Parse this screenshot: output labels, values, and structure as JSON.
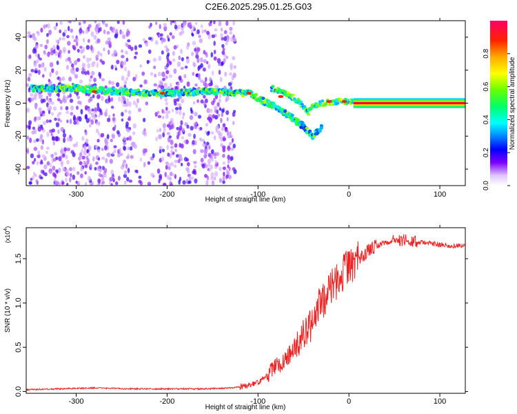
{
  "title": "C2E6.2025.295.01.25.G03",
  "chart_data": [
    {
      "type": "heatmap",
      "xlabel": "Height of straight line (km)",
      "ylabel": "Frequency (Hz)",
      "xlim": [
        -355,
        128
      ],
      "ylim": [
        -50,
        50
      ],
      "xticks": [
        -300,
        -200,
        -100,
        0,
        100
      ],
      "yticks": [
        -40,
        -20,
        0,
        20,
        40
      ],
      "colorbar": {
        "label": "Normalized spectral amplitude",
        "range": [
          0,
          1
        ],
        "ticks": [
          "0.0",
          "0.2",
          "0.4",
          "0.6",
          "0.8"
        ],
        "colors": [
          "#ffffff",
          "#7c00ff",
          "#0000ff",
          "#00aaff",
          "#00ffff",
          "#00ff66",
          "#66ff00",
          "#ffff00",
          "#ffaa00",
          "#ff0000",
          "#ff0066"
        ]
      },
      "ridge": [
        {
          "x": -350,
          "y": 9
        },
        {
          "x": -300,
          "y": 9
        },
        {
          "x": -260,
          "y": 7
        },
        {
          "x": -210,
          "y": 6
        },
        {
          "x": -150,
          "y": 7
        },
        {
          "x": -110,
          "y": 6
        },
        {
          "x": -100,
          "y": 3
        },
        {
          "x": -90,
          "y": 0
        },
        {
          "x": -80,
          "y": -2
        },
        {
          "x": -70,
          "y": -6
        },
        {
          "x": -60,
          "y": -10
        },
        {
          "x": -50,
          "y": -14
        },
        {
          "x": -40,
          "y": -20
        },
        {
          "x": 0,
          "y": 1
        },
        {
          "x": 128,
          "y": 0
        }
      ],
      "branch": [
        {
          "x": -85,
          "y": 9
        },
        {
          "x": -70,
          "y": 6
        },
        {
          "x": -60,
          "y": 3
        },
        {
          "x": -50,
          "y": -2
        },
        {
          "x": -45,
          "y": -6
        },
        {
          "x": -40,
          "y": -2
        },
        {
          "x": -30,
          "y": 0
        },
        {
          "x": -10,
          "y": 1
        },
        {
          "x": 5,
          "y": 1
        }
      ]
    },
    {
      "type": "line",
      "xlabel": "Height of straight line (km)",
      "ylabel": "SNR (10 * v/v)",
      "yscale_label": "(x10",
      "yscale_exp": "4",
      "xlim": [
        -355,
        128
      ],
      "ylim": [
        -0.02,
        1.85
      ],
      "xticks": [
        -300,
        -200,
        -100,
        0,
        100
      ],
      "yticks": [
        "0.0",
        "0.5",
        "1.0",
        "1.5"
      ],
      "color": "#ee2222",
      "series": [
        {
          "x": [
            -355,
            -320,
            -280,
            -240,
            -200,
            -160,
            -130,
            -115,
            -100,
            -90,
            -80,
            -70,
            -60,
            -50,
            -40,
            -30,
            -20,
            -10,
            0,
            10,
            20,
            30,
            40,
            50,
            60,
            70,
            80,
            90,
            100,
            110,
            128
          ],
          "y": [
            0.02,
            0.03,
            0.04,
            0.03,
            0.03,
            0.03,
            0.04,
            0.06,
            0.1,
            0.18,
            0.28,
            0.36,
            0.48,
            0.62,
            0.82,
            1.0,
            1.18,
            1.3,
            1.4,
            1.5,
            1.58,
            1.64,
            1.68,
            1.7,
            1.71,
            1.7,
            1.68,
            1.67,
            1.66,
            1.65,
            1.64
          ]
        }
      ]
    }
  ]
}
